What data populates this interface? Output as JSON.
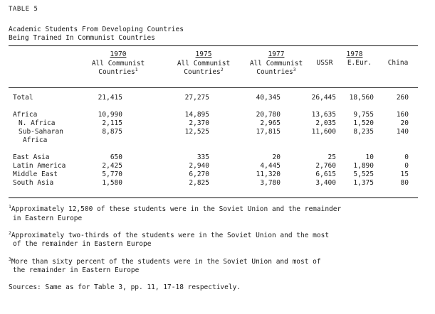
{
  "table_label": "TABLE 5",
  "caption": {
    "line1": "Academic Students From Developing Countries",
    "line2": "Being Trained In Communist Countries"
  },
  "header": {
    "col_1970": {
      "year": "1970",
      "line1": "All Communist",
      "line2": "Countries",
      "note": "1"
    },
    "col_1975": {
      "year": "1975",
      "line1": "All Communist",
      "line2": "Countries",
      "note": "2"
    },
    "col_1977": {
      "year": "1977",
      "line1": "All Communist",
      "line2": "Countries",
      "note": "3"
    },
    "group_1978": "1978",
    "col_ussr": "USSR",
    "col_eeur": "E.Eur.",
    "col_china": "China"
  },
  "rows": [
    {
      "label": "Total",
      "v1970": "21,415",
      "v1975": "27,275",
      "v1977": "40,345",
      "ussr": "26,445",
      "eeur": "18,560",
      "china": "260"
    },
    {
      "label": "Africa",
      "v1970": "10,990",
      "v1975": "14,895",
      "v1977": "20,780",
      "ussr": "13,635",
      "eeur": "9,755",
      "china": "160"
    },
    {
      "label": "N. Africa",
      "v1970": "2,115",
      "v1975": "2,370",
      "v1977": "2,965",
      "ussr": "2,035",
      "eeur": "1,520",
      "china": "20"
    },
    {
      "label": "Sub-Saharan",
      "label2": "Africa",
      "v1970": "8,875",
      "v1975": "12,525",
      "v1977": "17,815",
      "ussr": "11,600",
      "eeur": "8,235",
      "china": "140"
    },
    {
      "label": "East Asia",
      "v1970": "650",
      "v1975": "335",
      "v1977": "20",
      "ussr": "25",
      "eeur": "10",
      "china": "0"
    },
    {
      "label": "Latin America",
      "v1970": "2,425",
      "v1975": "2,940",
      "v1977": "4,445",
      "ussr": "2,760",
      "eeur": "1,890",
      "china": "0"
    },
    {
      "label": "Middle East",
      "v1970": "5,770",
      "v1975": "6,270",
      "v1977": "11,320",
      "ussr": "6,615",
      "eeur": "5,525",
      "china": "15"
    },
    {
      "label": "South Asia",
      "v1970": "1,580",
      "v1975": "2,825",
      "v1977": "3,780",
      "ussr": "3,400",
      "eeur": "1,375",
      "china": "80"
    }
  ],
  "footnotes": [
    {
      "mark": "1",
      "line1": "Approximately 12,500 of these students were in the Soviet Union and the remainder",
      "line2": "in Eastern Europe"
    },
    {
      "mark": "2",
      "line1": "Approximately two-thirds of the students were in the Soviet Union and the most",
      "line2": "of the remainder in Eastern Europe"
    },
    {
      "mark": "3",
      "line1": "More than sixty percent of the students were in the Soviet Union and most of",
      "line2": "the remainder in Eastern Europe"
    }
  ],
  "sources": "Sources:  Same as for Table 3, pp. 11, 17-18 respectively."
}
